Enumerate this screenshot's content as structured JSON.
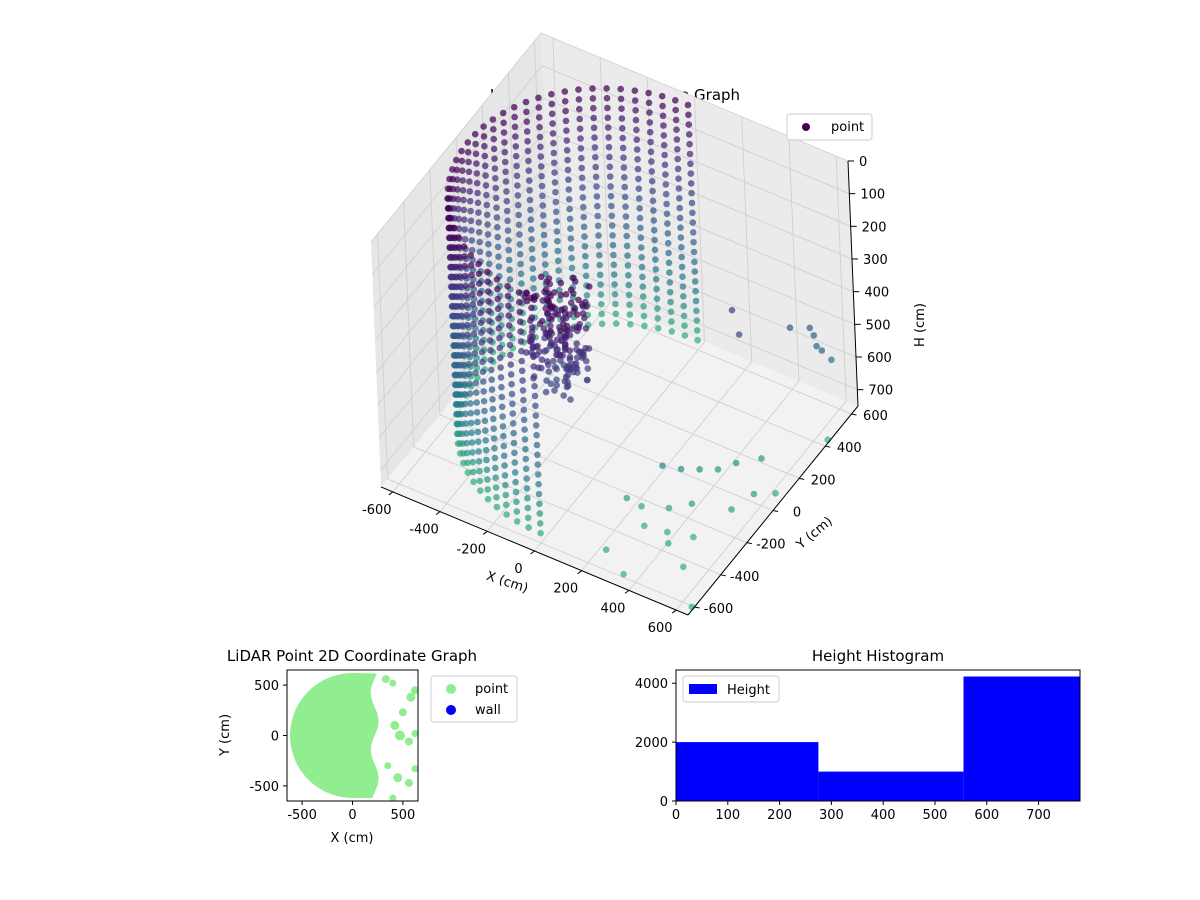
{
  "figure": {
    "background": "#ffffff"
  },
  "chart_data": [
    {
      "type": "scatter",
      "projection": "3d",
      "title": "LiDAR Point 3D Coordinate Graph",
      "xlabel": "X (cm)",
      "ylabel": "Y (cm)",
      "zlabel": "H (cm)",
      "xlim": [
        -650,
        650
      ],
      "ylim": [
        -650,
        650
      ],
      "zlim": [
        750,
        0
      ],
      "z_inverted": true,
      "xticks": [
        -600,
        -400,
        -200,
        0,
        200,
        400,
        600
      ],
      "yticks": [
        -600,
        -400,
        -200,
        0,
        200,
        400,
        600
      ],
      "zticks": [
        0,
        100,
        200,
        300,
        400,
        500,
        600,
        700
      ],
      "grid": true,
      "legend": {
        "entries": [
          "point"
        ],
        "placement": "top-right"
      },
      "colormap": "viridis",
      "series": [
        {
          "name": "point",
          "color": "#440154",
          "shape": "curved wall of points, radius about 600 cm, spanning angles 90° to 270° (negative-x half), heights 0–740 cm",
          "wall": {
            "radius": 600,
            "angle_start_deg": 90,
            "angle_end_deg": 270,
            "z_range": [
              0,
              740
            ]
          },
          "cluster": {
            "x_range": [
              -50,
              150
            ],
            "y_range": [
              -600,
              -400
            ],
            "z_range": [
              0,
              300
            ],
            "note": "dense dark cluster near top of wall"
          },
          "scattered_points": [
            {
              "x": 420,
              "y": 150,
              "z": 280
            },
            {
              "x": 470,
              "y": 110,
              "z": 320
            },
            {
              "x": 560,
              "y": 330,
              "z": 380
            },
            {
              "x": 610,
              "y": 390,
              "z": 395
            },
            {
              "x": 620,
              "y": 400,
              "z": 420
            },
            {
              "x": 630,
              "y": 400,
              "z": 450
            },
            {
              "x": 640,
              "y": 420,
              "z": 470
            },
            {
              "x": 650,
              "y": 470,
              "z": 520
            },
            {
              "x": 300,
              "y": -200,
              "z": 620
            },
            {
              "x": 350,
              "y": -150,
              "z": 640
            },
            {
              "x": 400,
              "y": -100,
              "z": 650
            },
            {
              "x": 450,
              "y": -50,
              "z": 660
            },
            {
              "x": 500,
              "y": 0,
              "z": 650
            },
            {
              "x": 550,
              "y": 100,
              "z": 670
            },
            {
              "x": 200,
              "y": -300,
              "z": 700
            },
            {
              "x": 250,
              "y": -280,
              "z": 720
            },
            {
              "x": 300,
              "y": -350,
              "z": 730
            },
            {
              "x": 350,
              "y": -250,
              "z": 710
            },
            {
              "x": 380,
              "y": -320,
              "z": 740
            },
            {
              "x": 420,
              "y": -200,
              "z": 700
            },
            {
              "x": 430,
              "y": -400,
              "z": 720
            },
            {
              "x": 480,
              "y": -300,
              "z": 735
            },
            {
              "x": 520,
              "y": -450,
              "z": 740
            },
            {
              "x": 560,
              "y": -150,
              "z": 700
            },
            {
              "x": 600,
              "y": -50,
              "z": 690
            },
            {
              "x": 640,
              "y": 40,
              "z": 720
            },
            {
              "x": 650,
              "y": 420,
              "z": 740
            },
            {
              "x": 650,
              "y": -620,
              "z": 740
            },
            {
              "x": 350,
              "y": -600,
              "z": 740
            },
            {
              "x": 250,
              "y": -550,
              "z": 720
            }
          ]
        }
      ]
    },
    {
      "type": "scatter",
      "title": "LiDAR Point 2D Coordinate Graph",
      "xlabel": "X (cm)",
      "ylabel": "Y (cm)",
      "xlim": [
        -650,
        650
      ],
      "ylim": [
        -650,
        650
      ],
      "xticks": [
        -500,
        0,
        500
      ],
      "yticks": [
        -500,
        0,
        500
      ],
      "grid": false,
      "legend": {
        "entries": [
          "point",
          "wall"
        ],
        "placement": "outside-right"
      },
      "series": [
        {
          "name": "point",
          "color": "#90ee90",
          "region": {
            "semicircle_radius": 620,
            "side": "negative-x",
            "right_edge_x_range": [
              180,
              260
            ]
          },
          "blobs": [
            {
              "x": 330,
              "y": 560,
              "r": 40
            },
            {
              "x": 400,
              "y": 520,
              "r": 35
            },
            {
              "x": 580,
              "y": 380,
              "r": 45
            },
            {
              "x": 620,
              "y": 450,
              "r": 40
            },
            {
              "x": 500,
              "y": 230,
              "r": 40
            },
            {
              "x": 420,
              "y": 100,
              "r": 45
            },
            {
              "x": 470,
              "y": 0,
              "r": 50
            },
            {
              "x": 560,
              "y": -60,
              "r": 40
            },
            {
              "x": 620,
              "y": 20,
              "r": 35
            },
            {
              "x": 350,
              "y": -300,
              "r": 35
            },
            {
              "x": 450,
              "y": -420,
              "r": 45
            },
            {
              "x": 560,
              "y": -470,
              "r": 40
            },
            {
              "x": 620,
              "y": -330,
              "r": 35
            },
            {
              "x": 400,
              "y": -620,
              "r": 35
            }
          ]
        },
        {
          "name": "wall",
          "color": "#0000ff",
          "points": []
        }
      ]
    },
    {
      "type": "bar",
      "subtype": "histogram",
      "title": "Height Histogram",
      "xlim": [
        0,
        780
      ],
      "ylim": [
        0,
        4450
      ],
      "xticks": [
        0,
        100,
        200,
        300,
        400,
        500,
        600,
        700
      ],
      "yticks": [
        0,
        2000,
        4000
      ],
      "grid": false,
      "legend": {
        "entries": [
          "Height"
        ],
        "placement": "upper-left"
      },
      "series": [
        {
          "name": "Height",
          "color": "#0000ff",
          "bins": [
            {
              "x0": 0,
              "x1": 275,
              "count": 2000
            },
            {
              "x0": 275,
              "x1": 555,
              "count": 1000
            },
            {
              "x0": 555,
              "x1": 780,
              "count": 4230
            }
          ]
        }
      ]
    }
  ]
}
